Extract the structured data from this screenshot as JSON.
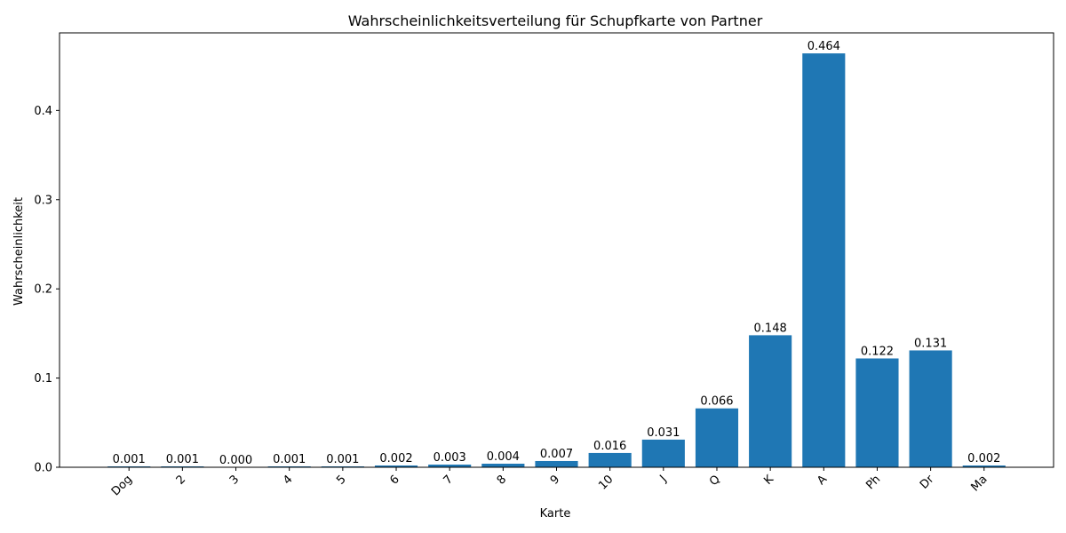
{
  "chart_data": {
    "type": "bar",
    "title": "Wahrscheinlichkeitsverteilung für Schupfkarte von Partner",
    "xlabel": "Karte",
    "ylabel": "Wahrscheinlichkeit",
    "categories": [
      "Dog",
      "2",
      "3",
      "4",
      "5",
      "6",
      "7",
      "8",
      "9",
      "10",
      "J",
      "Q",
      "K",
      "A",
      "Ph",
      "Dr",
      "Ma"
    ],
    "values": [
      0.001,
      0.001,
      0.0,
      0.001,
      0.001,
      0.002,
      0.003,
      0.004,
      0.007,
      0.016,
      0.031,
      0.066,
      0.148,
      0.464,
      0.122,
      0.131,
      0.002
    ],
    "value_labels": [
      "0.001",
      "0.001",
      "0.000",
      "0.001",
      "0.001",
      "0.002",
      "0.003",
      "0.004",
      "0.007",
      "0.016",
      "0.031",
      "0.066",
      "0.148",
      "0.464",
      "0.122",
      "0.131",
      "0.002"
    ],
    "ylim": [
      0,
      0.487
    ],
    "yticks": [
      0.0,
      0.1,
      0.2,
      0.3,
      0.4
    ],
    "ytick_labels": [
      "0.0",
      "0.1",
      "0.2",
      "0.3",
      "0.4"
    ],
    "bar_color": "#1f77b4",
    "grid": false,
    "legend": "none"
  }
}
